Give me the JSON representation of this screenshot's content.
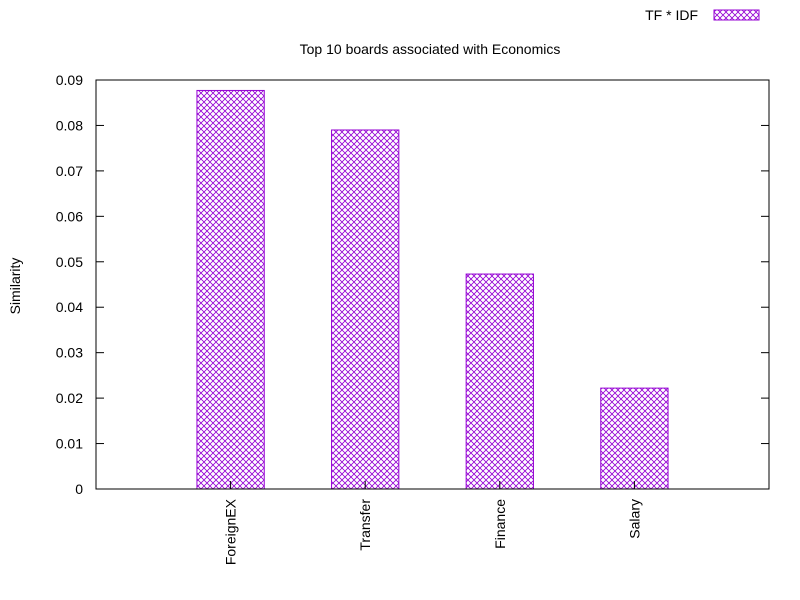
{
  "chart_data": {
    "type": "bar",
    "title": "Top 10 boards associated with Economics",
    "xlabel": "",
    "ylabel": "Similarity",
    "categories": [
      "ForeignEX",
      "Transfer",
      "Finance",
      "Salary"
    ],
    "series": [
      {
        "name": "TF * IDF",
        "values": [
          0.0877,
          0.079,
          0.0473,
          0.0222
        ]
      }
    ],
    "ylim": [
      0,
      0.09
    ],
    "yticks": [
      "0",
      "0.01",
      "0.02",
      "0.03",
      "0.04",
      "0.05",
      "0.06",
      "0.07",
      "0.08",
      "0.09"
    ],
    "grid": false,
    "legend_position": "top-right",
    "bar_fill": "crosshatch",
    "colors": {
      "bar": "#9400d3",
      "axis": "#000000",
      "background": "#ffffff"
    }
  }
}
